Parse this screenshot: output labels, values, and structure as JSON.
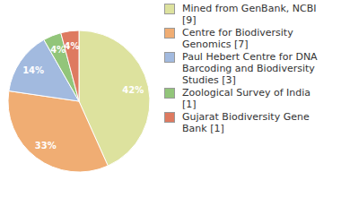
{
  "chart_data": {
    "type": "pie",
    "categories": [
      "Mined from GenBank, NCBI [9]",
      "Centre for Biodiversity Genomics [7]",
      "Paul Hebert Centre for DNA Barcoding and Biodiversity Studies [3]",
      "Zoological Survey of India [1]",
      "Gujarat Biodiversity Gene Bank [1]"
    ],
    "values": [
      42,
      33,
      14,
      4,
      4
    ],
    "value_labels": [
      "42%",
      "33%",
      "14%",
      "4%",
      "4%"
    ],
    "colors": [
      "#dde29e",
      "#f0ad73",
      "#a2badf",
      "#92c57a",
      "#de7a60"
    ],
    "data_labels": true,
    "legend": "right"
  }
}
